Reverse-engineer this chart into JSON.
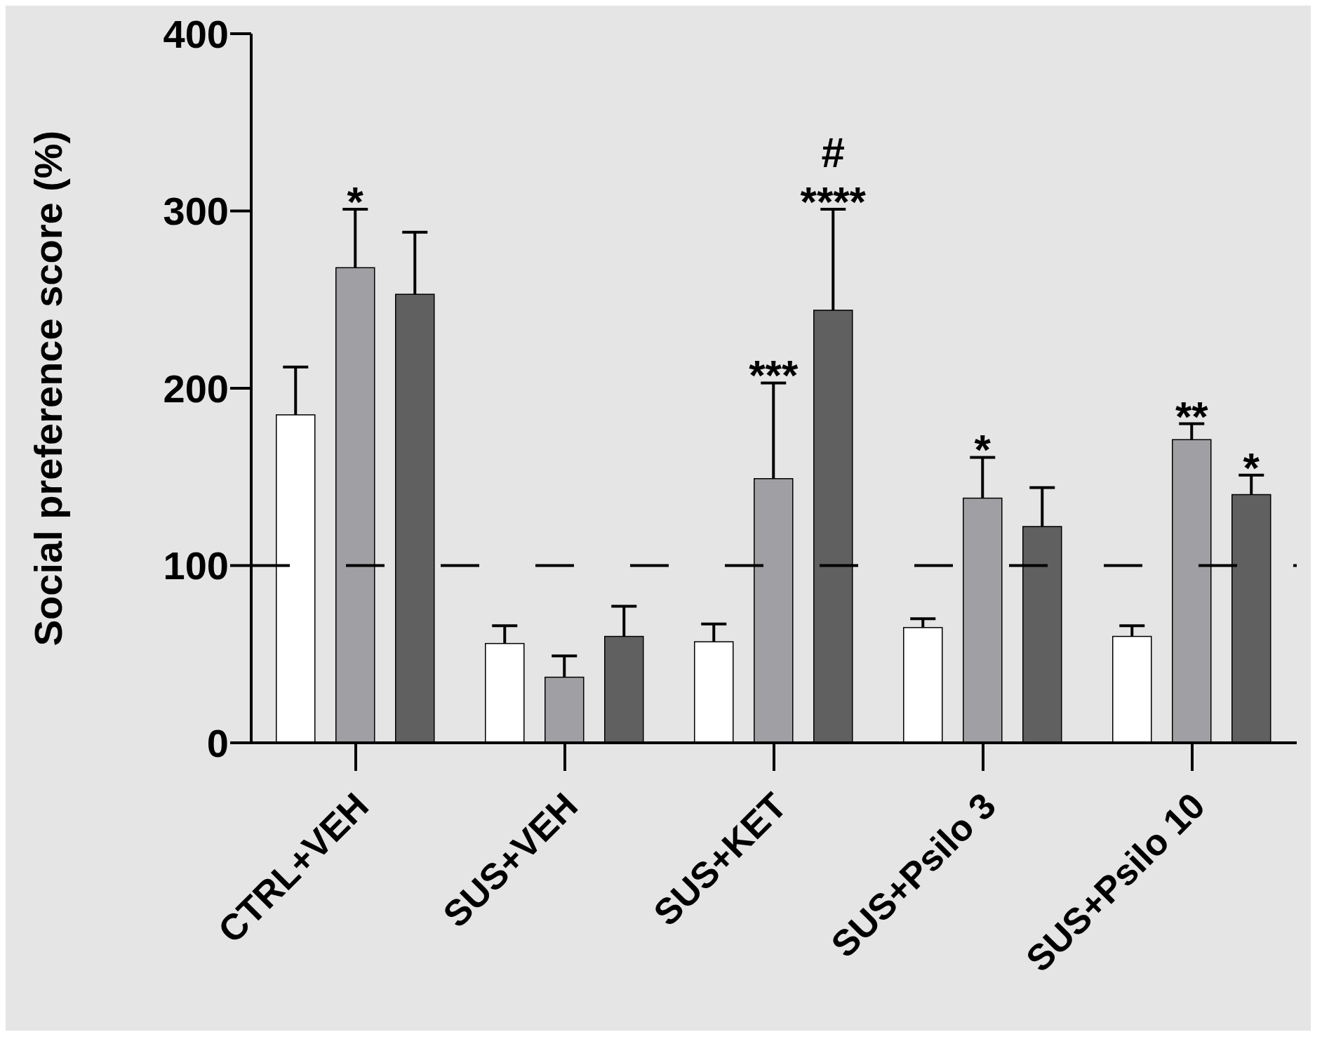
{
  "chart_data": {
    "type": "bar",
    "ylabel": "Social preference score (%)",
    "categories": [
      "CTRL+VEH",
      "SUS+VEH",
      "SUS+KET",
      "SUS+Psilo 3",
      "SUS+Psilo 10"
    ],
    "series": [
      {
        "color": "#ffffff",
        "values": [
          185,
          56,
          57,
          65,
          60
        ],
        "errors": [
          [
            185,
            212
          ],
          [
            56,
            66
          ],
          [
            57,
            67
          ],
          [
            65,
            70
          ],
          [
            60,
            66
          ]
        ],
        "value_labels": [
          null,
          null,
          null,
          null,
          null
        ]
      },
      {
        "color": "#a0a0a4",
        "values": [
          268,
          37,
          149,
          138,
          171
        ],
        "errors": [
          [
            268,
            301
          ],
          [
            37,
            49
          ],
          [
            149,
            203
          ],
          [
            138,
            161
          ],
          [
            171,
            180
          ]
        ],
        "value_labels": [
          "*",
          null,
          "***",
          "*",
          "**"
        ]
      },
      {
        "color": "#606060",
        "values": [
          253,
          60,
          244,
          122,
          140
        ],
        "errors": [
          [
            253,
            288
          ],
          [
            60,
            77
          ],
          [
            244,
            301
          ],
          [
            122,
            144
          ],
          [
            140,
            151
          ]
        ],
        "value_labels": [
          null,
          null,
          "#\n****",
          null,
          "*"
        ]
      }
    ],
    "ylim": [
      0,
      400
    ],
    "yticks": [
      0,
      100,
      200,
      300,
      400
    ],
    "grid": false,
    "ref_lines": [
      {
        "axis": "y",
        "value": 100,
        "color": "#000000",
        "line_style": "dashed"
      }
    ]
  }
}
